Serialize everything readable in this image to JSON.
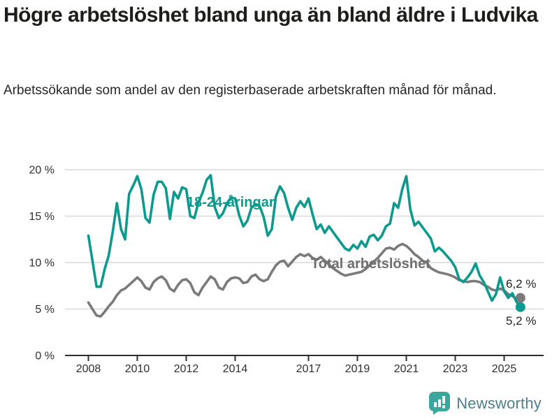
{
  "header": {
    "title": "Högre arbetslöshet bland unga än bland äldre i Ludvika",
    "subtitle": "Arbetssökande som andel av den registerbaserade arbetskraften månad för månad."
  },
  "chart_data": {
    "type": "line",
    "x_start_year": 2008,
    "x_step_months": 2,
    "x_end": "2025-09",
    "x_ticks": [
      2008,
      2010,
      2012,
      2014,
      2017,
      2019,
      2021,
      2023,
      2025
    ],
    "y_ticks": [
      0,
      5,
      10,
      15,
      20
    ],
    "y_tick_suffix": " %",
    "ylim": [
      0,
      20.8
    ],
    "grid": "horizontal",
    "colors": {
      "grid": "#d9d9d9",
      "axis": "#2e2e2e",
      "tick_text": "#2f2f2f",
      "end_label_text": "#222222"
    },
    "series": [
      {
        "id": "total",
        "name": "Total arbetslöshet",
        "color": "#7a7a7a",
        "label_color": "#6f6f6f",
        "end_label": "6,2 %",
        "end_value": 6.2,
        "values": [
          5.7,
          5.0,
          4.3,
          4.2,
          4.7,
          5.3,
          5.8,
          6.5,
          7.0,
          7.2,
          7.6,
          8.0,
          8.4,
          8.0,
          7.3,
          7.1,
          7.9,
          8.3,
          8.5,
          8.1,
          7.2,
          6.9,
          7.6,
          8.1,
          8.2,
          7.8,
          6.8,
          6.5,
          7.3,
          7.9,
          8.5,
          8.2,
          7.3,
          7.1,
          7.9,
          8.3,
          8.4,
          8.3,
          7.8,
          7.9,
          8.5,
          8.7,
          8.2,
          8.0,
          8.2,
          9.0,
          9.7,
          10.1,
          10.2,
          9.6,
          10.1,
          10.6,
          10.9,
          10.7,
          10.9,
          10.5,
          10.3,
          10.6,
          10.2,
          9.8,
          9.4,
          9.1,
          8.8,
          8.6,
          8.7,
          8.8,
          8.9,
          9.0,
          9.3,
          9.7,
          10.1,
          10.5,
          11.0,
          11.5,
          11.6,
          11.4,
          11.8,
          12.0,
          11.8,
          11.4,
          10.9,
          10.6,
          10.2,
          10.0,
          9.4,
          9.15,
          8.95,
          8.85,
          8.75,
          8.6,
          8.4,
          8.1,
          8.0,
          7.9,
          8.0,
          8.0,
          7.9,
          7.6,
          7.4,
          7.1,
          7.0,
          7.2,
          7.0,
          6.6,
          6.4,
          6.1,
          6.2
        ]
      },
      {
        "id": "youth",
        "name": "18-24-åringar",
        "color": "#0c9a8e",
        "label_color": "#0c9a8e",
        "end_label": "5,2 %",
        "end_value": 5.2,
        "values": [
          12.9,
          10.2,
          7.4,
          7.4,
          9.3,
          10.8,
          13.4,
          16.4,
          13.6,
          12.5,
          17.4,
          18.3,
          19.3,
          17.9,
          14.8,
          14.3,
          17.3,
          18.7,
          18.7,
          18.0,
          14.7,
          17.6,
          16.9,
          18.1,
          17.9,
          15.0,
          14.8,
          16.5,
          17.5,
          18.9,
          19.4,
          16.0,
          14.8,
          15.3,
          16.4,
          17.0,
          16.9,
          15.1,
          13.9,
          14.5,
          15.9,
          16.3,
          16.1,
          14.9,
          12.9,
          13.6,
          17.1,
          18.2,
          17.5,
          15.9,
          14.6,
          15.9,
          16.6,
          16.0,
          16.9,
          15.2,
          13.6,
          14.1,
          13.2,
          13.9,
          13.3,
          12.7,
          12.1,
          11.5,
          11.3,
          11.9,
          11.5,
          12.3,
          11.7,
          12.8,
          13.0,
          12.4,
          12.9,
          13.9,
          14.2,
          16.4,
          15.9,
          17.9,
          19.3,
          15.7,
          14.0,
          14.4,
          13.8,
          13.2,
          12.6,
          11.2,
          11.6,
          11.2,
          10.7,
          10.2,
          9.5,
          8.2,
          7.9,
          8.4,
          9.0,
          9.9,
          8.6,
          7.9,
          6.9,
          5.9,
          6.6,
          8.4,
          6.9,
          6.2,
          6.7,
          5.8,
          5.2
        ]
      }
    ]
  },
  "footer": {
    "brand": "Newsworthy",
    "brand_color": "#4f7e8c",
    "icon": "speech-bubble-bar-chart-icon",
    "icon_color": "#3aa79d"
  }
}
